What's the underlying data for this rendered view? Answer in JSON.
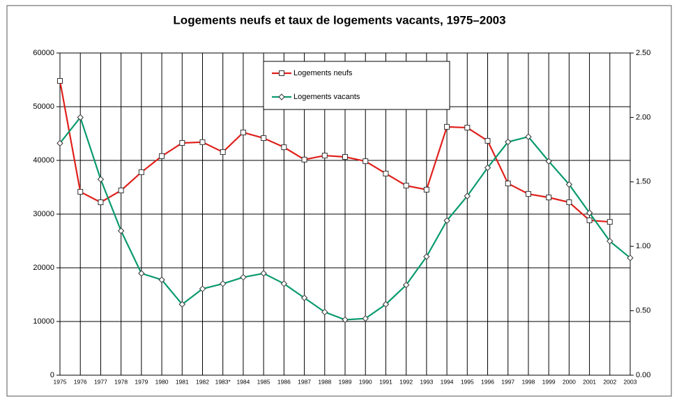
{
  "chart_data": {
    "type": "line",
    "title": "Logements neufs et taux de logements vacants, 1975–2003",
    "categories": [
      "1975",
      "1976",
      "1977",
      "1978",
      "1979",
      "1980",
      "1981",
      "1982",
      "1983*",
      "1984",
      "1985",
      "1986",
      "1987",
      "1988",
      "1989",
      "1990",
      "1991",
      "1992",
      "1993",
      "1994",
      "1995",
      "1996",
      "1997",
      "1998",
      "1999",
      "2000",
      "2001",
      "2002",
      "2003"
    ],
    "series": [
      {
        "name": "Logements neufs",
        "color": "#e0201b",
        "marker": "square",
        "values": [
          54800,
          34150,
          32200,
          34400,
          37800,
          40800,
          43250,
          43400,
          41550,
          45200,
          44150,
          42450,
          40150,
          40900,
          40650,
          39850,
          37550,
          35300,
          34550,
          46250,
          46100,
          43650,
          35700,
          33750,
          33100,
          32200,
          28850,
          28550,
          null
        ]
      },
      {
        "name": "Logements vacants",
        "color": "#0a9a6e",
        "marker": "diamond",
        "axis": "y2",
        "values": [
          1.8,
          2.0,
          1.52,
          1.12,
          0.79,
          0.74,
          0.55,
          0.67,
          0.71,
          0.76,
          0.79,
          0.71,
          0.6,
          0.49,
          0.43,
          0.44,
          0.55,
          0.7,
          0.92,
          1.2,
          1.39,
          1.61,
          1.81,
          1.85,
          1.66,
          1.48,
          1.26,
          1.04,
          0.91
        ]
      }
    ],
    "ylim": [
      0,
      60000
    ],
    "yticks": [
      0,
      10000,
      20000,
      30000,
      40000,
      50000,
      60000
    ],
    "y2lim": [
      0,
      2.5
    ],
    "y2ticks": [
      {
        "value": 0,
        "label": "0.00"
      },
      {
        "value": 0.5,
        "label": "0.50"
      },
      {
        "value": 1,
        "label": "1.00"
      },
      {
        "value": 1.5,
        "label": "1.50"
      },
      {
        "value": 2,
        "label": "2.00"
      },
      {
        "value": 2.5,
        "label": "2.50"
      }
    ],
    "grid": true
  }
}
